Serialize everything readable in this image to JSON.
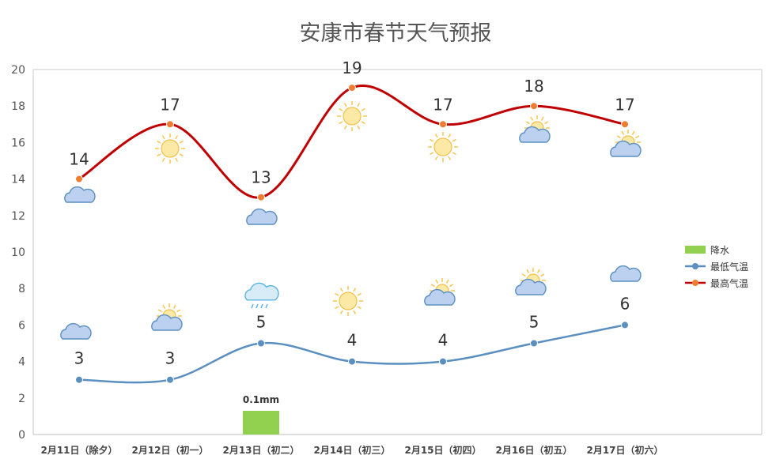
{
  "title": "安康市春节天气预报",
  "chart_data": {
    "type": "line",
    "categories": [
      "2月11日（除夕）",
      "2月12日（初一）",
      "2月13日（初二）",
      "2月14日（初三）",
      "2月15日（初四）",
      "2月16日（初五）",
      "2月17日（初六）"
    ],
    "ylim": [
      0,
      20
    ],
    "yticks": [
      0,
      2,
      4,
      6,
      8,
      10,
      12,
      14,
      16,
      18,
      20
    ],
    "grid": false,
    "legend_position": "right",
    "series": [
      {
        "name": "降水",
        "type": "bar",
        "color": "#92d050",
        "values": [
          0,
          0,
          0.1,
          0,
          0,
          0,
          0
        ],
        "labels": [
          "",
          "",
          "0.1mm",
          "",
          "",
          "",
          ""
        ]
      },
      {
        "name": "最低气温",
        "type": "line",
        "color": "#5b8fc0",
        "marker_color": "#5b8fc0",
        "values": [
          3,
          3,
          5,
          4,
          4,
          5,
          6
        ]
      },
      {
        "name": "最高气温",
        "type": "line",
        "color": "#c00000",
        "marker_color": "#ed7d31",
        "values": [
          14,
          17,
          13,
          19,
          17,
          18,
          17
        ]
      }
    ],
    "weather_icons_high": [
      "cloud-icon",
      "sun-icon",
      "cloud-icon",
      "sun-icon",
      "sun-icon",
      "sun-cloud-icon",
      "sun-cloud-icon"
    ],
    "weather_icons_low": [
      "cloud-icon",
      "sun-cloud-icon",
      "rain-cloud-icon",
      "sun-icon",
      "sun-cloud-icon",
      "sun-cloud-icon",
      "cloud-icon"
    ]
  }
}
